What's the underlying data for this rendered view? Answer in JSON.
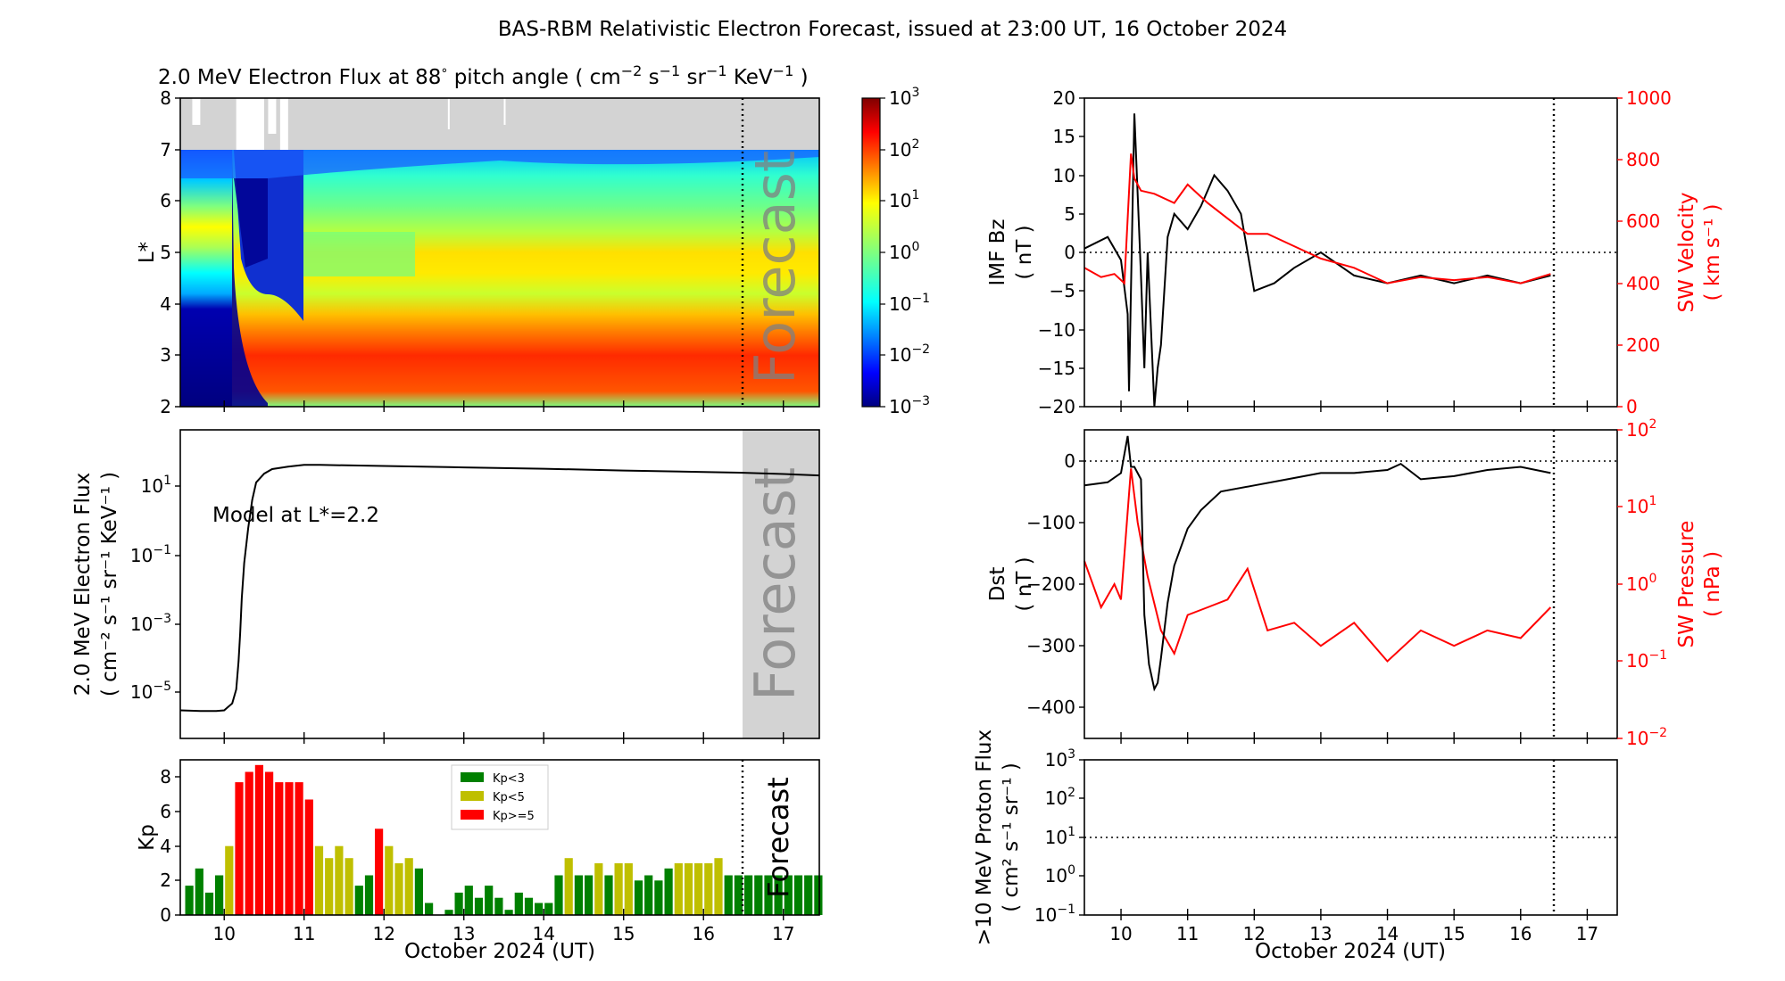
{
  "figure_title": "BAS-RBM Relativistic Electron Forecast, issued at 23:00 UT, 16 October 2024",
  "x_axis_label": "October 2024 (UT)",
  "x_tick_labels": [
    "10",
    "11",
    "12",
    "13",
    "14",
    "15",
    "16",
    "17"
  ],
  "forecast_label": "Forecast",
  "colors": {
    "kp_low": "#008000",
    "kp_mid": "#bfbf00",
    "kp_high": "#ff0000",
    "sw": "#ff0000",
    "model_line": "#000000",
    "no_data": "#d3d3d3"
  },
  "chart_data": [
    {
      "id": "flux_spectrogram",
      "type": "heatmap",
      "title": "2.0 MeV Electron Flux at 88$^\\circ$ pitch angle ( cm$^{-2}$ s$^{-1}$ sr$^{-1}$ KeV$^{-1}$ )",
      "title_parts": [
        "2.0 MeV Electron Flux at 88",
        "°",
        " pitch angle ( cm",
        "−2",
        " s",
        "−1",
        " sr",
        "−1",
        " KeV",
        "−1",
        " )"
      ],
      "ylabel": "L*",
      "y_ticks": [
        "2",
        "3",
        "4",
        "5",
        "6",
        "7",
        "8"
      ],
      "ylim": [
        2,
        8
      ],
      "xlim": [
        9.45,
        17.45
      ],
      "forecast_start": 16.45,
      "colorbar_ticks": [
        "10",
        "10",
        "10",
        "10",
        "10",
        "10",
        "10"
      ],
      "colorbar_exponents": [
        "−3",
        "−2",
        "−1",
        "0",
        "1",
        "2",
        "3"
      ],
      "colorbar_log_range": [
        -3,
        3
      ]
    },
    {
      "id": "model_flux",
      "type": "line",
      "ylabel_line1": "2.0 MeV Electron Flux",
      "ylabel_line2": "( cm⁻² s⁻¹ sr⁻¹ KeV⁻¹ )",
      "annotation": "Model at L*=2.2",
      "y_tick_bases": [
        "10",
        "10",
        "10",
        "10"
      ],
      "y_tick_exponents": [
        "1",
        "−1",
        "−3",
        "−5"
      ],
      "x": [
        9.45,
        9.7,
        9.9,
        10.0,
        10.1,
        10.15,
        10.18,
        10.2,
        10.22,
        10.25,
        10.3,
        10.35,
        10.4,
        10.5,
        10.6,
        10.8,
        11.0,
        11.2,
        12,
        13,
        14,
        15,
        16,
        16.45,
        17,
        17.45
      ],
      "log10_values": [
        -5.2,
        -5.22,
        -5.22,
        -5.2,
        -5.0,
        -4.6,
        -3.8,
        -3.0,
        -2.0,
        -1.0,
        0.0,
        0.8,
        1.3,
        1.55,
        1.68,
        1.75,
        1.8,
        1.8,
        1.77,
        1.73,
        1.69,
        1.64,
        1.6,
        1.58,
        1.54,
        1.5
      ],
      "ylim_log": [
        -6,
        2.8
      ]
    },
    {
      "id": "kp",
      "type": "bar",
      "ylabel": "Kp",
      "y_ticks": [
        "0",
        "2",
        "4",
        "6",
        "8"
      ],
      "ylim": [
        0,
        9
      ],
      "legend": [
        "Kp<3",
        "Kp<5",
        "Kp>=5"
      ],
      "values": [
        1.7,
        2.7,
        1.3,
        2.3,
        4.0,
        7.7,
        8.3,
        8.7,
        8.3,
        7.7,
        7.7,
        7.7,
        6.7,
        4.0,
        3.3,
        4.0,
        3.3,
        1.7,
        2.3,
        5.0,
        4.0,
        3.0,
        3.3,
        2.7,
        0.7,
        0.0,
        0.3,
        1.3,
        1.7,
        1.0,
        1.7,
        1.0,
        0.3,
        1.3,
        1.0,
        0.7,
        0.7,
        2.3,
        3.3,
        2.3,
        2.3,
        3.0,
        2.3,
        3.0,
        3.0,
        2.0,
        2.3,
        2.0,
        2.7,
        3.0,
        3.0,
        3.0,
        3.0,
        3.3,
        2.3,
        2.3,
        2.3,
        2.3,
        2.3,
        2.3,
        2.3,
        2.3,
        2.3,
        2.3
      ],
      "x_start": 9.5,
      "bin_days": 0.125
    },
    {
      "id": "imf_bz_sw_velocity",
      "type": "line",
      "ylabel_line1": "IMF Bz",
      "ylabel_line2": "( nT )",
      "y_ticks": [
        "20",
        "15",
        "10",
        "5",
        "0",
        "−5",
        "−10",
        "−15",
        "−20"
      ],
      "ylim": [
        -20,
        20
      ],
      "y2label_line1": "SW Velocity",
      "y2label_line2": "( km s⁻¹ )",
      "y2_ticks": [
        "1000",
        "800",
        "600",
        "400",
        "200",
        "0"
      ],
      "y2lim": [
        0,
        1000
      ],
      "series": [
        {
          "name": "IMF Bz",
          "x": [
            9.45,
            9.8,
            10.0,
            10.1,
            10.12,
            10.2,
            10.3,
            10.35,
            10.4,
            10.5,
            10.55,
            10.6,
            10.7,
            10.8,
            11.0,
            11.2,
            11.4,
            11.6,
            11.8,
            12.0,
            12.3,
            12.6,
            13.0,
            13.5,
            14.0,
            14.5,
            15.0,
            15.5,
            16.0,
            16.45
          ],
          "values": [
            0.5,
            2,
            -1,
            -8,
            -18,
            18,
            -3,
            -15,
            0,
            -20,
            -15,
            -12,
            2,
            5,
            3,
            6,
            10,
            8,
            5,
            -5,
            -4,
            -2,
            0,
            -3,
            -4,
            -3,
            -4,
            -3,
            -4,
            -3
          ]
        },
        {
          "name": "SW Velocity",
          "x": [
            9.45,
            9.7,
            9.9,
            10.05,
            10.15,
            10.2,
            10.3,
            10.5,
            10.8,
            11.0,
            11.3,
            11.6,
            11.9,
            12.2,
            12.6,
            13.0,
            13.5,
            14.0,
            14.5,
            15.0,
            15.5,
            16.0,
            16.45
          ],
          "values": [
            450,
            420,
            430,
            400,
            820,
            740,
            700,
            690,
            660,
            720,
            660,
            610,
            560,
            560,
            520,
            480,
            450,
            400,
            420,
            410,
            420,
            400,
            430
          ]
        }
      ]
    },
    {
      "id": "dst_sw_pressure",
      "type": "line",
      "ylabel_line1": "Dst",
      "ylabel_line2": "( nT )",
      "y_ticks": [
        "0",
        "−100",
        "−200",
        "−300",
        "−400"
      ],
      "ylim": [
        -450,
        50
      ],
      "y2label_line1": "SW Pressure",
      "y2label_line2": "( nPa )",
      "y2_tick_bases": [
        "10",
        "10",
        "10",
        "10",
        "10"
      ],
      "y2_tick_exponents": [
        "2",
        "1",
        "0",
        "−1",
        "−2"
      ],
      "y2lim_log": [
        -2,
        2
      ],
      "series": [
        {
          "name": "Dst",
          "x": [
            9.45,
            9.8,
            10.0,
            10.1,
            10.15,
            10.2,
            10.3,
            10.35,
            10.42,
            10.5,
            10.55,
            10.6,
            10.7,
            10.8,
            11.0,
            11.2,
            11.5,
            12.0,
            12.5,
            13.0,
            13.5,
            14.0,
            14.2,
            14.5,
            15.0,
            15.5,
            16.0,
            16.45
          ],
          "values": [
            -40,
            -35,
            -20,
            40,
            -10,
            -10,
            -30,
            -250,
            -330,
            -370,
            -360,
            -320,
            -230,
            -170,
            -110,
            -80,
            -50,
            -40,
            -30,
            -20,
            -20,
            -15,
            -5,
            -30,
            -25,
            -15,
            -10,
            -20
          ]
        },
        {
          "name": "SW Pressure",
          "x": [
            9.45,
            9.7,
            9.9,
            10.0,
            10.15,
            10.25,
            10.4,
            10.6,
            10.8,
            11.0,
            11.3,
            11.6,
            11.9,
            12.2,
            12.6,
            13.0,
            13.5,
            14.0,
            14.5,
            15.0,
            15.5,
            16.0,
            16.45
          ],
          "log10_values": [
            0.3,
            -0.3,
            0.0,
            -0.2,
            1.5,
            0.8,
            0.1,
            -0.6,
            -0.9,
            -0.4,
            -0.3,
            -0.2,
            0.2,
            -0.6,
            -0.5,
            -0.8,
            -0.5,
            -1.0,
            -0.6,
            -0.8,
            -0.6,
            -0.7,
            -0.3
          ]
        }
      ]
    },
    {
      "id": "proton_flux",
      "type": "line",
      "ylabel_line1": ">10 MeV Proton Flux",
      "ylabel_line2": "( cm² s⁻¹ sr⁻¹ )",
      "y_tick_bases": [
        "10",
        "10",
        "10",
        "10",
        "10"
      ],
      "y_tick_exponents": [
        "3",
        "2",
        "1",
        "0",
        "−1"
      ],
      "ylim_log": [
        -1,
        3
      ],
      "threshold_log": 1,
      "values": []
    }
  ]
}
